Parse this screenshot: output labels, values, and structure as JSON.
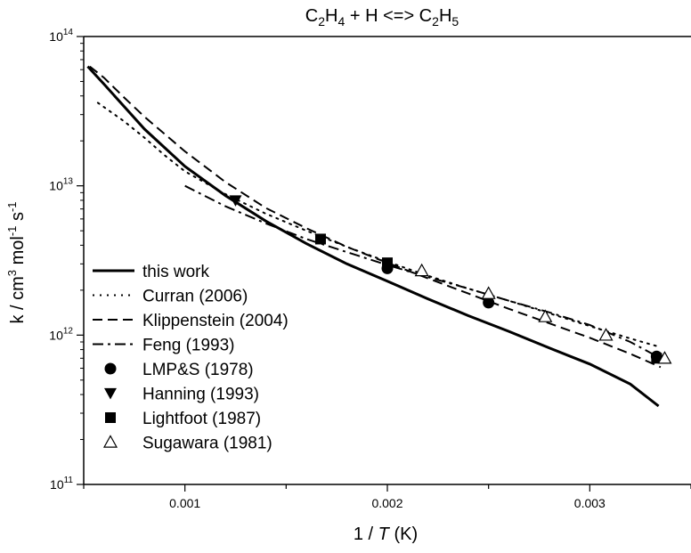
{
  "chart_data": {
    "type": "line",
    "title": {
      "base1": "C",
      "sub1": "2",
      "base2": "H",
      "sub2": "4",
      "mid": " + H <=> C",
      "sub3": "2",
      "base3": "H",
      "sub4": "5"
    },
    "xlabel": {
      "prefix": "1 / ",
      "italic": "T",
      "suffix": " (K)"
    },
    "ylabel": {
      "text": "k / cm",
      "sup1": "3",
      "mid": " mol",
      "sup2": "-1",
      "mid2": " s",
      "sup3": "-1"
    },
    "x_scale": "linear",
    "y_scale": "log",
    "xlim": [
      0.0005,
      0.0035
    ],
    "ylim": [
      100000000000.0,
      100000000000000.0
    ],
    "x_ticks": [
      {
        "value": 0.001,
        "label": "0.001"
      },
      {
        "value": 0.002,
        "label": "0.002"
      },
      {
        "value": 0.003,
        "label": "0.003"
      }
    ],
    "y_ticks": [
      {
        "value": 100000000000.0,
        "base": "10",
        "exp": "11"
      },
      {
        "value": 1000000000000.0,
        "base": "10",
        "exp": "12"
      },
      {
        "value": 10000000000000.0,
        "base": "10",
        "exp": "13"
      },
      {
        "value": 100000000000000.0,
        "base": "10",
        "exp": "14"
      }
    ],
    "grid": false,
    "legend_position": "left",
    "series": [
      {
        "name": "this work",
        "kind": "line",
        "dash": "solid",
        "width": 3,
        "points": [
          [
            0.00052,
            63000000000000.0
          ],
          [
            0.0006,
            48000000000000.0
          ],
          [
            0.0008,
            24000000000000.0
          ],
          [
            0.001,
            13500000000000.0
          ],
          [
            0.0012,
            8600000000000.0
          ],
          [
            0.0014,
            5800000000000.0
          ],
          [
            0.0016,
            4100000000000.0
          ],
          [
            0.0018,
            3000000000000.0
          ],
          [
            0.002,
            2300000000000.0
          ],
          [
            0.0022,
            1750000000000.0
          ],
          [
            0.0024,
            1350000000000.0
          ],
          [
            0.0026,
            1060000000000.0
          ],
          [
            0.0028,
            820000000000.0
          ],
          [
            0.003,
            640000000000.0
          ],
          [
            0.0032,
            470000000000.0
          ],
          [
            0.00334,
            335000000000.0
          ]
        ]
      },
      {
        "name": "Curran (2006)",
        "kind": "line",
        "dash": "dotted",
        "width": 2,
        "points": [
          [
            0.00057,
            36000000000000.0
          ],
          [
            0.0007,
            27000000000000.0
          ],
          [
            0.0008,
            21000000000000.0
          ],
          [
            0.0009,
            16000000000000.0
          ],
          [
            0.001,
            12500000000000.0
          ],
          [
            0.0012,
            8800000000000.0
          ],
          [
            0.0014,
            6500000000000.0
          ],
          [
            0.0016,
            5000000000000.0
          ],
          [
            0.0018,
            3900000000000.0
          ],
          [
            0.002,
            3100000000000.0
          ],
          [
            0.0022,
            2500000000000.0
          ],
          [
            0.0024,
            2050000000000.0
          ],
          [
            0.0026,
            1700000000000.0
          ],
          [
            0.0028,
            1400000000000.0
          ],
          [
            0.003,
            1150000000000.0
          ],
          [
            0.0032,
            950000000000.0
          ],
          [
            0.00335,
            830000000000.0
          ]
        ]
      },
      {
        "name": "Klippenstein (2004)",
        "kind": "line",
        "dash": "dashed",
        "width": 2,
        "points": [
          [
            0.00053,
            63000000000000.0
          ],
          [
            0.0006,
            53000000000000.0
          ],
          [
            0.0007,
            39000000000000.0
          ],
          [
            0.0008,
            29000000000000.0
          ],
          [
            0.001,
            17000000000000.0
          ],
          [
            0.0012,
            10600000000000.0
          ],
          [
            0.0014,
            7100000000000.0
          ],
          [
            0.0016,
            5200000000000.0
          ],
          [
            0.0018,
            3900000000000.0
          ],
          [
            0.002,
            3050000000000.0
          ],
          [
            0.0022,
            2400000000000.0
          ],
          [
            0.0024,
            1900000000000.0
          ],
          [
            0.0026,
            1500000000000.0
          ],
          [
            0.0028,
            1200000000000.0
          ],
          [
            0.003,
            960000000000.0
          ],
          [
            0.0032,
            750000000000.0
          ],
          [
            0.00335,
            610000000000.0
          ]
        ]
      },
      {
        "name": "Feng (1993)",
        "kind": "line",
        "dash": "dashdot",
        "width": 2,
        "points": [
          [
            0.001,
            10000000000000.0
          ],
          [
            0.0012,
            7300000000000.0
          ],
          [
            0.0014,
            5600000000000.0
          ],
          [
            0.0016,
            4400000000000.0
          ],
          [
            0.0018,
            3600000000000.0
          ],
          [
            0.002,
            2950000000000.0
          ],
          [
            0.0022,
            2450000000000.0
          ],
          [
            0.0024,
            2050000000000.0
          ],
          [
            0.0026,
            1700000000000.0
          ],
          [
            0.0028,
            1420000000000.0
          ],
          [
            0.003,
            1170000000000.0
          ],
          [
            0.0032,
            900000000000.0
          ],
          [
            0.00335,
            700000000000.0
          ]
        ]
      },
      {
        "name": "LMP&S (1978)",
        "kind": "marker",
        "marker": "circle",
        "points": [
          [
            0.002,
            2800000000000.0
          ],
          [
            0.0025,
            1650000000000.0
          ],
          [
            0.00333,
            720000000000.0
          ]
        ]
      },
      {
        "name": "Hanning (1993)",
        "kind": "marker",
        "marker": "triangle-down",
        "points": [
          [
            0.00125,
            8000000000000.0
          ]
        ]
      },
      {
        "name": "Lightfoot (1987)",
        "kind": "marker",
        "marker": "square",
        "points": [
          [
            0.00167,
            4400000000000.0
          ],
          [
            0.002,
            3050000000000.0
          ],
          [
            0.00333,
            700000000000.0
          ]
        ]
      },
      {
        "name": "Sugawara (1981)",
        "kind": "marker",
        "marker": "triangle-open",
        "points": [
          [
            0.00217,
            2700000000000.0
          ],
          [
            0.0025,
            1900000000000.0
          ],
          [
            0.00278,
            1330000000000.0
          ],
          [
            0.00308,
            1000000000000.0
          ],
          [
            0.00337,
            700000000000.0
          ]
        ]
      }
    ]
  }
}
